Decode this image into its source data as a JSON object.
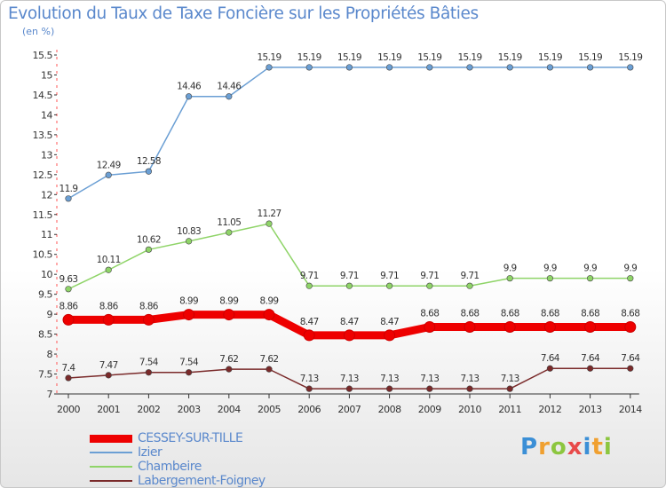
{
  "title": "Evolution du Taux de Taxe Foncière sur les Propriétés Bâties",
  "unit": "(en %)",
  "logo": {
    "letters": [
      "P",
      "r",
      "o",
      "x",
      "i",
      "t",
      "i"
    ],
    "colors": [
      "#3b8fd6",
      "#f0a030",
      "#8cc63f",
      "#e84a4a",
      "#3b8fd6",
      "#f0a030",
      "#8cc63f"
    ]
  },
  "chart_data": {
    "type": "line",
    "title": "Evolution du Taux de Taxe Foncière sur les Propriétés Bâties",
    "ylabel": "(en %)",
    "xlabel": "",
    "x": [
      "2000",
      "2001",
      "2002",
      "2003",
      "2004",
      "2005",
      "2006",
      "2007",
      "2008",
      "2009",
      "2010",
      "2011",
      "2012",
      "2013",
      "2014"
    ],
    "ylim": [
      7,
      15.5
    ],
    "yticks": [
      "7",
      "7.5",
      "8",
      "8.5",
      "9",
      "9.5",
      "10",
      "10.5",
      "11",
      "11.5",
      "12",
      "12.5",
      "13",
      "13.5",
      "14",
      "14.5",
      "15",
      "15.5"
    ],
    "series": [
      {
        "name": "Izier",
        "color": "#6b9fd4",
        "values": [
          11.9,
          12.49,
          12.58,
          14.46,
          14.46,
          15.19,
          15.19,
          15.19,
          15.19,
          15.19,
          15.19,
          15.19,
          15.19,
          15.19,
          15.19
        ],
        "labels": [
          "11.9",
          "12.49",
          "12.58",
          "14.46",
          "14.46",
          "15.19",
          "15.19",
          "15.19",
          "15.19",
          "15.19",
          "15.19",
          "15.19",
          "15.19",
          "15.19",
          "15.19"
        ]
      },
      {
        "name": "Chambeire",
        "color": "#8fd468",
        "values": [
          9.63,
          10.11,
          10.62,
          10.83,
          11.05,
          11.27,
          9.71,
          9.71,
          9.71,
          9.71,
          9.71,
          9.9,
          9.9,
          9.9,
          9.9
        ],
        "labels": [
          "9.63",
          "10.11",
          "10.62",
          "10.83",
          "11.05",
          "11.27",
          "9.71",
          "9.71",
          "9.71",
          "9.71",
          "9.71",
          "9.9",
          "9.9",
          "9.9",
          "9.9"
        ]
      },
      {
        "name": "CESSEY-SUR-TILLE",
        "color": "#ee0000",
        "values": [
          8.86,
          8.86,
          8.86,
          8.99,
          8.99,
          8.99,
          8.47,
          8.47,
          8.47,
          8.68,
          8.68,
          8.68,
          8.68,
          8.68,
          8.68
        ],
        "labels": [
          "8.86",
          "8.86",
          "8.86",
          "8.99",
          "8.99",
          "8.99",
          "8.47",
          "8.47",
          "8.47",
          "8.68",
          "8.68",
          "8.68",
          "8.68",
          "8.68",
          "8.68"
        ]
      },
      {
        "name": "Labergement-Foigney",
        "color": "#7a2a2a",
        "values": [
          7.4,
          7.47,
          7.54,
          7.54,
          7.62,
          7.62,
          7.13,
          7.13,
          7.13,
          7.13,
          7.13,
          7.13,
          7.64,
          7.64,
          7.64
        ],
        "labels": [
          "7.4",
          "7.47",
          "7.54",
          "7.54",
          "7.62",
          "7.62",
          "7.13",
          "7.13",
          "7.13",
          "7.13",
          "7.13",
          "7.13",
          "7.64",
          "7.64",
          "7.64"
        ]
      }
    ],
    "legend": [
      "CESSEY-SUR-TILLE",
      "Izier",
      "Chambeire",
      "Labergement-Foigney"
    ],
    "legend_position": "bottom-left",
    "grid": false
  }
}
